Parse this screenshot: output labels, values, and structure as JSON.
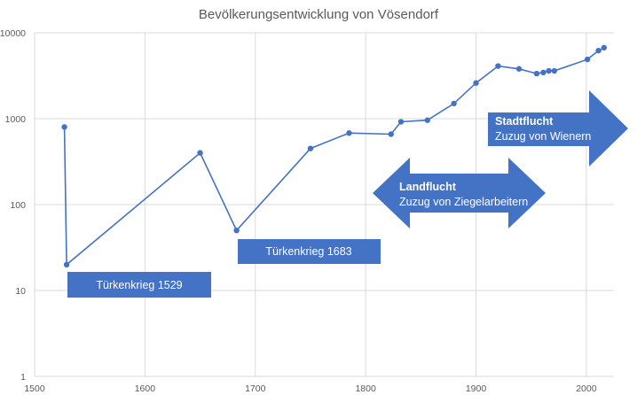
{
  "chart_data": {
    "type": "scatter",
    "title": "Bevölkerungsentwicklung von Vösendorf",
    "xlim": [
      1500,
      2025
    ],
    "x_ticks": [
      "1500",
      "1600",
      "1700",
      "1800",
      "1900",
      "2000"
    ],
    "ylim": [
      1,
      10000
    ],
    "y_scale": "log",
    "y_ticks": [
      "1",
      "10",
      "100",
      "1000",
      "10000"
    ],
    "grid": true,
    "series": [
      {
        "color": "#4472c4",
        "points": [
          [
            1527,
            800
          ],
          [
            1529,
            20
          ],
          [
            1650,
            400
          ],
          [
            1683,
            50
          ],
          [
            1750,
            450
          ],
          [
            1785,
            680
          ],
          [
            1823,
            660
          ],
          [
            1832,
            920
          ],
          [
            1856,
            960
          ],
          [
            1880,
            1500
          ],
          [
            1900,
            2600
          ],
          [
            1920,
            4100
          ],
          [
            1939,
            3800
          ],
          [
            1955,
            3350
          ],
          [
            1961,
            3450
          ],
          [
            1966,
            3600
          ],
          [
            1971,
            3600
          ],
          [
            2001,
            4900
          ],
          [
            2011,
            6200
          ],
          [
            2016,
            6700
          ]
        ]
      }
    ],
    "annotations": [
      {
        "id": "t1529",
        "text": "Türkenkrieg 1529",
        "color": "#4472c4"
      },
      {
        "id": "t1683",
        "text": "Türkenkrieg 1683",
        "color": "#4472c4"
      },
      {
        "id": "land",
        "title": "Landflucht",
        "text": "Zuzug von Ziegelarbeitern",
        "color": "#4472c4"
      },
      {
        "id": "stadt",
        "title": "Stadtflucht",
        "text": "Zuzug von Wienern",
        "color": "#4472c4"
      }
    ]
  }
}
